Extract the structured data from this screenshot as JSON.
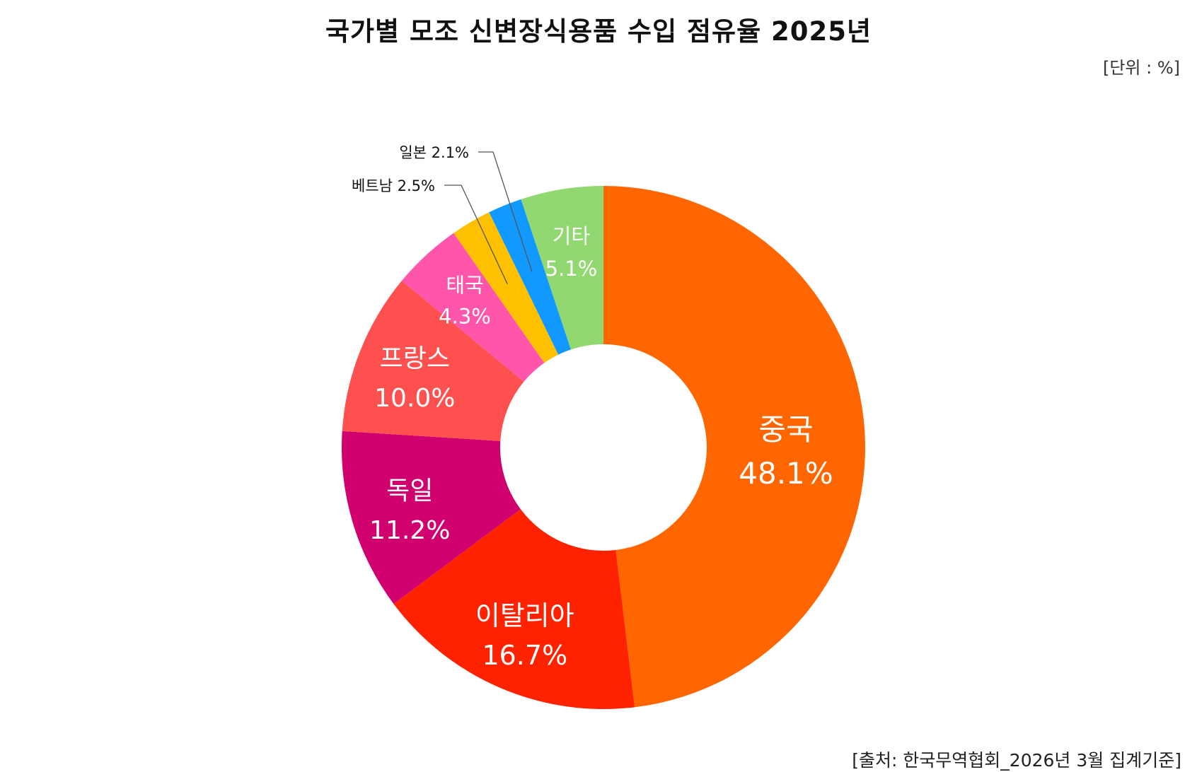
{
  "title": "국가별 모조 신변장식용품 수입 점유율 2025년",
  "unit": "[단위 : %]",
  "source": "[출처: 한국무역협회_2026년 3월 집계기준]",
  "chart_data": {
    "type": "pie",
    "donut": true,
    "slices": [
      {
        "label": "중국",
        "value": 48.1,
        "value_label": "48.1%",
        "color": "#FF6600",
        "label_position": "inside"
      },
      {
        "label": "이탈리아",
        "value": 16.7,
        "value_label": "16.7%",
        "color": "#FF2200",
        "label_position": "inside"
      },
      {
        "label": "독일",
        "value": 11.2,
        "value_label": "11.2%",
        "color": "#D0006F",
        "label_position": "inside"
      },
      {
        "label": "프랑스",
        "value": 10.0,
        "value_label": "10.0%",
        "color": "#FF5050",
        "label_position": "inside"
      },
      {
        "label": "태국",
        "value": 4.3,
        "value_label": "4.3%",
        "color": "#FF55AA",
        "label_position": "inside"
      },
      {
        "label": "베트남",
        "value": 2.5,
        "value_label": "2.5%",
        "color": "#FFC000",
        "label_position": "outside"
      },
      {
        "label": "일본",
        "value": 2.1,
        "value_label": "2.1%",
        "color": "#1199FF",
        "label_position": "outside"
      },
      {
        "label": "기타",
        "value": 5.1,
        "value_label": "5.1%",
        "color": "#92D870",
        "label_position": "inside"
      }
    ]
  }
}
